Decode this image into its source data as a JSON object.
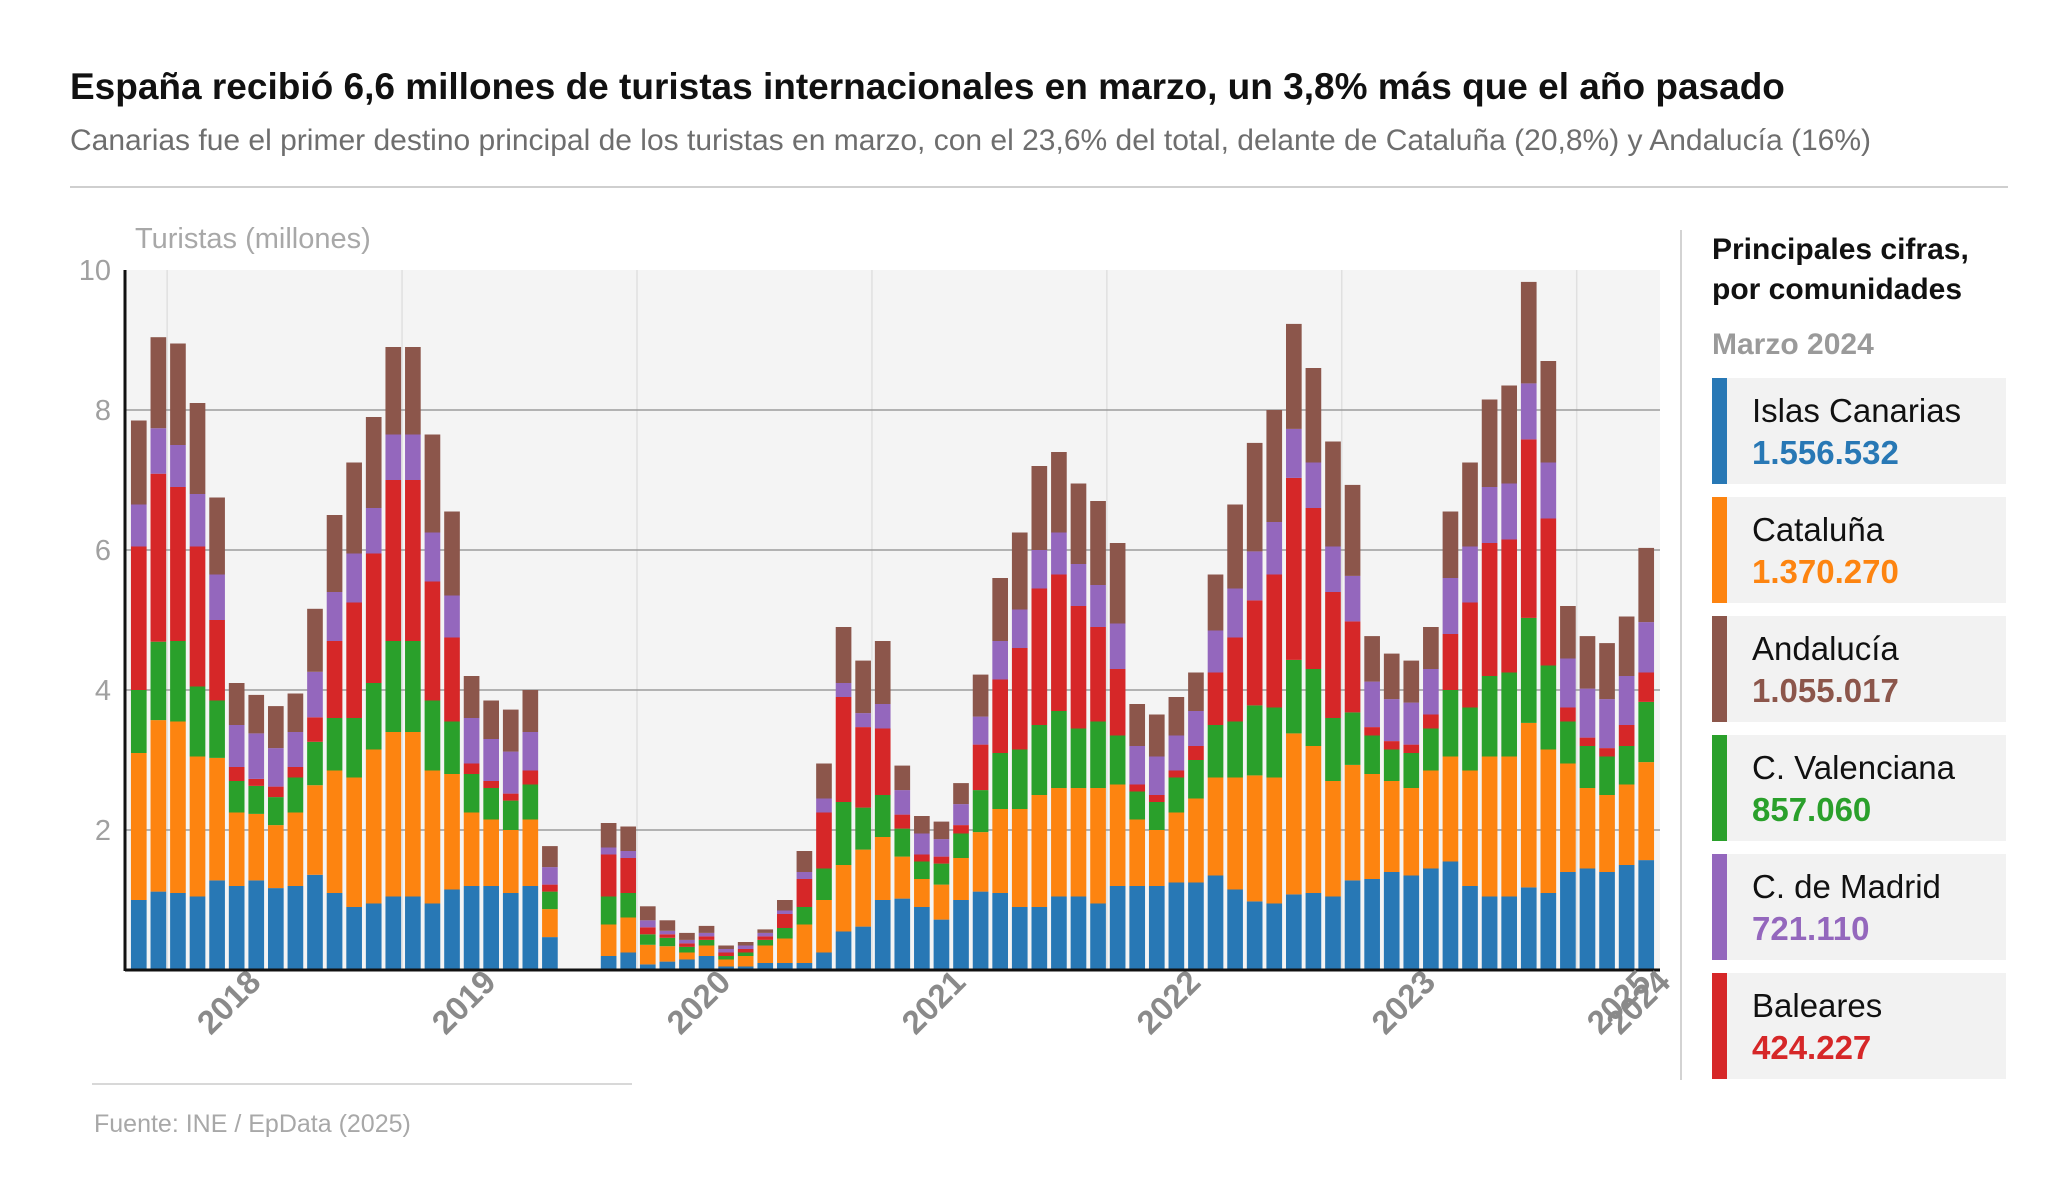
{
  "title": "España recibió 6,6 millones de turistas internacionales en marzo, un 3,8% más que el año pasado",
  "subtitle": "Canarias fue el primer destino principal de los turistas en marzo, con el 23,6% del total, delante de Cataluña (20,8%) y Andalucía (16%)",
  "source": "Fuente: INE / EpData (2025)",
  "colors": {
    "canarias": "#2878b5",
    "cataluna": "#fd8410",
    "valenciana": "#2aa02b",
    "baleares": "#d62728",
    "madrid": "#9467bd",
    "andalucia": "#8c564b"
  },
  "legend": {
    "title": "Principales cifras, por comunidades",
    "period": "Marzo 2024",
    "items": [
      {
        "name": "Islas Canarias",
        "value": "1.556.532",
        "color": "#2878b5"
      },
      {
        "name": "Cataluña",
        "value": "1.370.270",
        "color": "#fd8410"
      },
      {
        "name": "Andalucía",
        "value": "1.055.017",
        "color": "#8c564b"
      },
      {
        "name": "C. Valenciana",
        "value": "857.060",
        "color": "#2aa02b"
      },
      {
        "name": "C. de Madrid",
        "value": "721.110",
        "color": "#9467bd"
      },
      {
        "name": "Baleares",
        "value": "424.227",
        "color": "#d62728"
      }
    ]
  },
  "chart_data": {
    "type": "bar",
    "stacked": true,
    "title": "España recibió 6,6 millones de turistas internacionales en marzo, un 3,8% más que el año pasado",
    "ylabel": "Turistas (millones)",
    "ylim": [
      0,
      10
    ],
    "yticks": [
      2,
      4,
      6,
      8,
      10
    ],
    "year_labels": [
      "2018",
      "2019",
      "2020",
      "2021",
      "2022",
      "2023",
      "2024",
      "2025"
    ],
    "start": "2017-11",
    "end": "2025-03",
    "series": [
      {
        "name": "Islas Canarias",
        "values": [
          1.0,
          1.12,
          1.1,
          1.05,
          1.28,
          1.2,
          1.28,
          1.17,
          1.2,
          1.36,
          1.1,
          0.9,
          0.95,
          1.05,
          1.05,
          0.95,
          1.15,
          1.2,
          1.2,
          1.1,
          1.2,
          0.47,
          0,
          0,
          0.2,
          0.25,
          0.08,
          0.12,
          0.15,
          0.2,
          0.05,
          0.05,
          0.1,
          0.1,
          0.1,
          0.25,
          0.55,
          0.62,
          1.0,
          1.02,
          0.9,
          0.72,
          1.0,
          1.12,
          1.1,
          0.9,
          0.9,
          1.05,
          1.05,
          0.95,
          1.2,
          1.2,
          1.2,
          1.25,
          1.25,
          1.35,
          1.15,
          0.98,
          0.95,
          1.08,
          1.1,
          1.05,
          1.28,
          1.3,
          1.4,
          1.35,
          1.45,
          1.55,
          1.2,
          1.05,
          1.05,
          1.18,
          1.1,
          1.4,
          1.45,
          1.4,
          1.5,
          1.57
        ]
      },
      {
        "name": "Cataluña",
        "values": [
          2.1,
          2.45,
          2.45,
          2.0,
          1.75,
          1.05,
          0.95,
          0.9,
          1.05,
          1.28,
          1.75,
          1.85,
          2.2,
          2.35,
          2.35,
          1.9,
          1.65,
          1.05,
          0.95,
          0.9,
          0.95,
          0.4,
          0,
          0,
          0.45,
          0.5,
          0.28,
          0.22,
          0.1,
          0.15,
          0.1,
          0.15,
          0.25,
          0.35,
          0.55,
          0.75,
          0.95,
          1.1,
          0.9,
          0.6,
          0.4,
          0.5,
          0.6,
          0.85,
          1.2,
          1.4,
          1.6,
          1.55,
          1.55,
          1.65,
          1.45,
          0.95,
          0.8,
          1.0,
          1.2,
          1.4,
          1.6,
          1.8,
          1.8,
          2.3,
          2.1,
          1.65,
          1.65,
          1.5,
          1.3,
          1.25,
          1.4,
          1.5,
          1.65,
          2.0,
          2.0,
          2.35,
          2.05,
          1.55,
          1.15,
          1.1,
          1.15,
          1.4
        ]
      },
      {
        "name": "C. Valenciana",
        "values": [
          0.9,
          1.12,
          1.15,
          1.0,
          0.82,
          0.45,
          0.4,
          0.4,
          0.5,
          0.62,
          0.75,
          0.85,
          0.95,
          1.3,
          1.3,
          1.0,
          0.75,
          0.55,
          0.45,
          0.42,
          0.5,
          0.25,
          0,
          0,
          0.4,
          0.35,
          0.15,
          0.12,
          0.08,
          0.08,
          0.05,
          0.05,
          0.08,
          0.15,
          0.25,
          0.45,
          0.9,
          0.6,
          0.6,
          0.4,
          0.25,
          0.3,
          0.35,
          0.6,
          0.8,
          0.85,
          1.0,
          1.1,
          0.85,
          0.95,
          0.7,
          0.4,
          0.4,
          0.5,
          0.55,
          0.75,
          0.8,
          1.0,
          1.0,
          1.05,
          1.1,
          0.9,
          0.75,
          0.55,
          0.45,
          0.5,
          0.6,
          0.95,
          0.9,
          1.15,
          1.2,
          1.5,
          1.2,
          0.6,
          0.6,
          0.55,
          0.55,
          0.86
        ]
      },
      {
        "name": "Baleares",
        "values": [
          2.05,
          2.4,
          2.2,
          2.0,
          1.15,
          0.2,
          0.1,
          0.15,
          0.15,
          0.35,
          1.1,
          1.65,
          1.85,
          2.3,
          2.3,
          1.7,
          1.2,
          0.15,
          0.1,
          0.1,
          0.2,
          0.1,
          0,
          0,
          0.6,
          0.5,
          0.1,
          0.05,
          0.05,
          0.05,
          0.05,
          0.05,
          0.05,
          0.2,
          0.4,
          0.8,
          1.5,
          1.15,
          0.95,
          0.2,
          0.1,
          0.1,
          0.12,
          0.65,
          1.05,
          1.45,
          1.95,
          1.95,
          1.75,
          1.35,
          0.95,
          0.1,
          0.1,
          0.1,
          0.2,
          0.75,
          1.2,
          1.5,
          1.9,
          2.6,
          2.3,
          1.8,
          1.3,
          0.12,
          0.12,
          0.12,
          0.2,
          0.8,
          1.5,
          1.9,
          1.9,
          2.55,
          2.1,
          0.2,
          0.12,
          0.12,
          0.3,
          0.42
        ]
      },
      {
        "name": "C. de Madrid",
        "values": [
          0.6,
          0.65,
          0.6,
          0.75,
          0.65,
          0.6,
          0.65,
          0.55,
          0.5,
          0.65,
          0.7,
          0.7,
          0.65,
          0.65,
          0.65,
          0.7,
          0.6,
          0.65,
          0.6,
          0.6,
          0.55,
          0.25,
          0,
          0,
          0.1,
          0.1,
          0.1,
          0.05,
          0.05,
          0.05,
          0.05,
          0.05,
          0.05,
          0.05,
          0.1,
          0.2,
          0.2,
          0.2,
          0.35,
          0.35,
          0.3,
          0.25,
          0.3,
          0.4,
          0.55,
          0.55,
          0.55,
          0.6,
          0.6,
          0.6,
          0.65,
          0.55,
          0.55,
          0.5,
          0.5,
          0.6,
          0.7,
          0.7,
          0.75,
          0.7,
          0.65,
          0.65,
          0.65,
          0.65,
          0.6,
          0.6,
          0.65,
          0.8,
          0.8,
          0.8,
          0.8,
          0.8,
          0.8,
          0.7,
          0.7,
          0.7,
          0.7,
          0.72
        ]
      },
      {
        "name": "Andalucía",
        "values": [
          1.2,
          1.3,
          1.45,
          1.3,
          1.1,
          0.6,
          0.55,
          0.6,
          0.55,
          0.9,
          1.1,
          1.3,
          1.3,
          1.25,
          1.25,
          1.4,
          1.2,
          0.6,
          0.55,
          0.6,
          0.6,
          0.3,
          0,
          0,
          0.35,
          0.35,
          0.2,
          0.15,
          0.1,
          0.1,
          0.05,
          0.05,
          0.05,
          0.15,
          0.3,
          0.5,
          0.8,
          0.75,
          0.9,
          0.35,
          0.25,
          0.25,
          0.3,
          0.6,
          0.9,
          1.1,
          1.2,
          1.15,
          1.15,
          1.2,
          1.15,
          0.6,
          0.6,
          0.55,
          0.55,
          0.8,
          1.2,
          1.55,
          1.6,
          1.5,
          1.35,
          1.5,
          1.3,
          0.65,
          0.65,
          0.6,
          0.6,
          0.95,
          1.2,
          1.25,
          1.4,
          1.45,
          1.45,
          0.75,
          0.75,
          0.8,
          0.85,
          1.06
        ]
      }
    ]
  }
}
